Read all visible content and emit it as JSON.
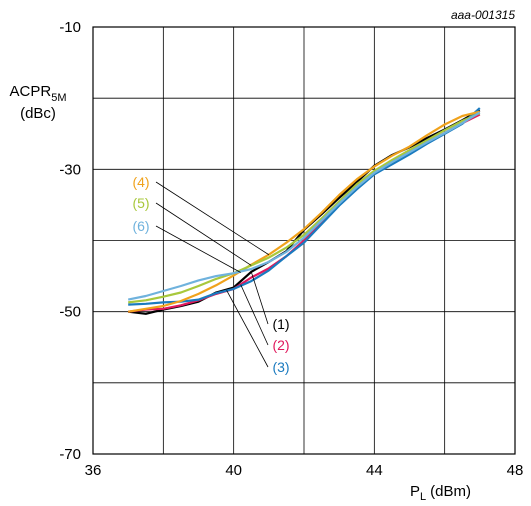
{
  "chart_data": {
    "type": "line",
    "figure_id": "aaa-001315",
    "ylabel_main": "ACPR",
    "ylabel_sub": "5M",
    "ylabel_unit": "(dBc)",
    "xlabel_main": "P",
    "xlabel_sub": "L",
    "xlabel_unit": "(dBm)",
    "xlim": [
      36,
      48
    ],
    "ylim": [
      -70,
      -10
    ],
    "x_ticks": [
      "36",
      "40",
      "44",
      "48"
    ],
    "y_ticks": [
      "-10",
      "-30",
      "-50",
      "-70"
    ],
    "grid": true,
    "series": [
      {
        "name": "(1)",
        "color": "#000000",
        "points": [
          [
            37.0,
            -50.0
          ],
          [
            37.5,
            -50.3
          ],
          [
            38.0,
            -49.7
          ],
          [
            38.5,
            -49.2
          ],
          [
            39.0,
            -48.6
          ],
          [
            39.5,
            -47.3
          ],
          [
            40.0,
            -46.6
          ],
          [
            40.5,
            -44.4
          ],
          [
            41.0,
            -43.0
          ],
          [
            41.5,
            -41.5
          ],
          [
            42.0,
            -38.5
          ],
          [
            42.5,
            -36.3
          ],
          [
            43.0,
            -34.0
          ],
          [
            43.5,
            -31.8
          ],
          [
            44.0,
            -29.5
          ],
          [
            44.5,
            -28.0
          ],
          [
            45.0,
            -26.9
          ],
          [
            45.5,
            -25.6
          ],
          [
            46.0,
            -24.4
          ],
          [
            46.5,
            -23.1
          ],
          [
            47.0,
            -21.7
          ]
        ]
      },
      {
        "name": "(2)",
        "color": "#e0185c",
        "points": [
          [
            37.0,
            -50.0
          ],
          [
            37.5,
            -49.7
          ],
          [
            38.0,
            -49.6
          ],
          [
            38.5,
            -49.1
          ],
          [
            39.0,
            -48.4
          ],
          [
            39.5,
            -47.5
          ],
          [
            40.0,
            -46.8
          ],
          [
            40.5,
            -45.2
          ],
          [
            41.0,
            -43.9
          ],
          [
            41.5,
            -42.2
          ],
          [
            42.0,
            -40.0
          ],
          [
            42.5,
            -37.3
          ],
          [
            43.0,
            -34.9
          ],
          [
            43.5,
            -32.7
          ],
          [
            44.0,
            -30.5
          ],
          [
            44.5,
            -28.9
          ],
          [
            45.0,
            -27.5
          ],
          [
            45.5,
            -26.2
          ],
          [
            46.0,
            -24.9
          ],
          [
            46.5,
            -23.5
          ],
          [
            47.0,
            -22.3
          ]
        ]
      },
      {
        "name": "(3)",
        "color": "#1a7abf",
        "points": [
          [
            37.0,
            -49.0
          ],
          [
            37.5,
            -48.9
          ],
          [
            38.0,
            -48.7
          ],
          [
            38.5,
            -48.6
          ],
          [
            39.0,
            -48.3
          ],
          [
            39.5,
            -47.4
          ],
          [
            40.0,
            -46.8
          ],
          [
            40.5,
            -45.7
          ],
          [
            41.0,
            -44.2
          ],
          [
            41.5,
            -42.2
          ],
          [
            42.0,
            -40.3
          ],
          [
            42.5,
            -37.7
          ],
          [
            43.0,
            -35.1
          ],
          [
            43.5,
            -32.8
          ],
          [
            44.0,
            -30.7
          ],
          [
            44.5,
            -29.3
          ],
          [
            45.0,
            -27.9
          ],
          [
            45.5,
            -26.4
          ],
          [
            46.0,
            -25.0
          ],
          [
            46.5,
            -23.6
          ],
          [
            47.0,
            -21.4
          ]
        ]
      },
      {
        "name": "(4)",
        "color": "#f0a21c",
        "points": [
          [
            37.0,
            -50.0
          ],
          [
            37.5,
            -49.6
          ],
          [
            38.0,
            -49.2
          ],
          [
            38.5,
            -48.5
          ],
          [
            39.0,
            -47.5
          ],
          [
            39.5,
            -46.3
          ],
          [
            40.0,
            -44.9
          ],
          [
            40.5,
            -43.4
          ],
          [
            41.0,
            -42.0
          ],
          [
            41.5,
            -40.3
          ],
          [
            42.0,
            -38.4
          ],
          [
            42.5,
            -36.1
          ],
          [
            43.0,
            -33.6
          ],
          [
            43.5,
            -31.4
          ],
          [
            44.0,
            -29.6
          ],
          [
            44.5,
            -28.1
          ],
          [
            45.0,
            -26.8
          ],
          [
            45.5,
            -25.2
          ],
          [
            46.0,
            -23.7
          ],
          [
            46.5,
            -22.5
          ],
          [
            47.0,
            -21.9
          ]
        ]
      },
      {
        "name": "(5)",
        "color": "#a8c83c",
        "points": [
          [
            37.0,
            -48.7
          ],
          [
            37.5,
            -48.4
          ],
          [
            38.0,
            -47.9
          ],
          [
            38.5,
            -47.3
          ],
          [
            39.0,
            -46.4
          ],
          [
            39.5,
            -45.4
          ],
          [
            40.0,
            -44.6
          ],
          [
            40.5,
            -43.5
          ],
          [
            41.0,
            -42.4
          ],
          [
            41.5,
            -41.0
          ],
          [
            42.0,
            -39.2
          ],
          [
            42.5,
            -36.9
          ],
          [
            43.0,
            -34.5
          ],
          [
            43.5,
            -32.1
          ],
          [
            44.0,
            -30.2
          ],
          [
            44.5,
            -28.7
          ],
          [
            45.0,
            -27.3
          ],
          [
            45.5,
            -25.9
          ],
          [
            46.0,
            -24.5
          ],
          [
            46.5,
            -23.2
          ],
          [
            47.0,
            -22.1
          ]
        ]
      },
      {
        "name": "(6)",
        "color": "#6fb2dd",
        "points": [
          [
            37.0,
            -48.3
          ],
          [
            37.5,
            -47.8
          ],
          [
            38.0,
            -47.1
          ],
          [
            38.5,
            -46.4
          ],
          [
            39.0,
            -45.6
          ],
          [
            39.5,
            -45.0
          ],
          [
            40.0,
            -44.6
          ],
          [
            40.5,
            -44.0
          ],
          [
            41.0,
            -43.0
          ],
          [
            41.5,
            -41.6
          ],
          [
            42.0,
            -39.6
          ],
          [
            42.5,
            -37.2
          ],
          [
            43.0,
            -34.8
          ],
          [
            43.5,
            -32.5
          ],
          [
            44.0,
            -30.5
          ],
          [
            44.5,
            -29.0
          ],
          [
            45.0,
            -27.6
          ],
          [
            45.5,
            -26.2
          ],
          [
            46.0,
            -24.9
          ],
          [
            46.5,
            -23.5
          ],
          [
            47.0,
            -22.0
          ]
        ]
      }
    ],
    "annotations": [
      {
        "text": "(4)",
        "series": 3,
        "color": "#f0a21c",
        "point": [
          41.0,
          -42.0
        ],
        "side": "left"
      },
      {
        "text": "(5)",
        "series": 4,
        "color": "#a8c83c",
        "point": [
          40.5,
          -43.5
        ],
        "side": "left"
      },
      {
        "text": "(6)",
        "series": 5,
        "color": "#6fb2dd",
        "point": [
          40.2,
          -44.5
        ],
        "side": "left"
      },
      {
        "text": "(1)",
        "series": 0,
        "color": "#000000",
        "point": [
          40.5,
          -44.4
        ],
        "side": "right"
      },
      {
        "text": "(2)",
        "series": 1,
        "color": "#e0185c",
        "point": [
          40.2,
          -46.2
        ],
        "side": "right"
      },
      {
        "text": "(3)",
        "series": 2,
        "color": "#1a7abf",
        "point": [
          39.8,
          -47.0
        ],
        "side": "right"
      }
    ]
  }
}
